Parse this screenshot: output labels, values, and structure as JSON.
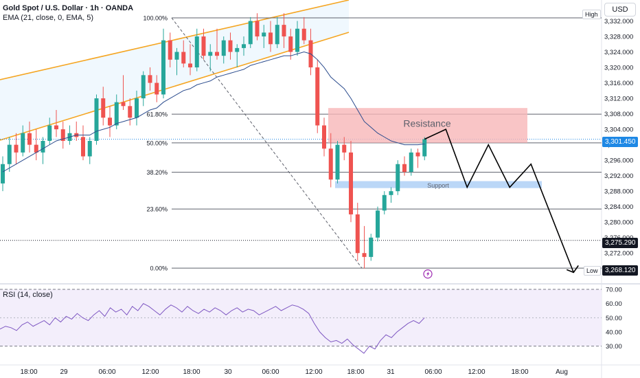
{
  "header": {
    "symbol_title": "Gold Spot / U.S. Dollar · 1h · OANDA",
    "indicator_label": "EMA (21, close, 0, EMA, 5)",
    "currency": "USD"
  },
  "rsi": {
    "label": "RSI (14, close)",
    "axis": [
      {
        "label": "70.00",
        "v": 70
      },
      {
        "label": "60.00",
        "v": 60
      },
      {
        "label": "50.00",
        "v": 50
      },
      {
        "label": "40.00",
        "v": 40
      },
      {
        "label": "30.00",
        "v": 30
      }
    ],
    "upper": 70,
    "lower": 30,
    "middle": 50,
    "values": [
      42,
      44,
      43,
      41,
      45,
      47,
      44,
      46,
      48,
      45,
      50,
      47,
      51,
      49,
      53,
      50,
      48,
      52,
      55,
      51,
      57,
      54,
      56,
      52,
      58,
      55,
      60,
      58,
      55,
      52,
      56,
      59,
      57,
      54,
      58,
      55,
      53,
      56,
      54,
      57,
      55,
      52,
      55,
      57,
      54,
      56,
      55,
      52,
      54,
      56,
      58,
      55,
      57,
      59,
      58,
      56,
      53,
      46,
      40,
      36,
      33,
      34,
      32,
      35,
      31,
      28,
      25,
      30,
      28,
      34,
      38,
      36,
      40,
      43,
      46,
      48,
      46,
      50
    ]
  },
  "price_axis": [
    "3,332.000",
    "3,328.000",
    "3,324.000",
    "3,320.000",
    "3,316.000",
    "3,312.000",
    "3,308.000",
    "3,304.000",
    "3,300.000",
    "3,296.000",
    "3,292.000",
    "3,288.000",
    "3,284.000",
    "3,280.000",
    "3,276.000",
    "3,272.000"
  ],
  "price_tags": {
    "current": "3,301.450",
    "line": "3,275.290",
    "low": "3,268.120"
  },
  "side_labels": {
    "high": "High",
    "low": "Low"
  },
  "fib_levels": [
    {
      "label": "100.00%"
    },
    {
      "label": "61.80%"
    },
    {
      "label": "50.00%"
    },
    {
      "label": "38.20%"
    },
    {
      "label": "23.60%"
    },
    {
      "label": "0.00%"
    }
  ],
  "zones": {
    "resistance": "Resistance",
    "support": "Support"
  },
  "time_axis": [
    "18:00",
    "29",
    "06:00",
    "12:00",
    "18:00",
    "30",
    "06:00",
    "12:00",
    "18:00",
    "31",
    "06:00",
    "12:00",
    "18:00",
    "Aug"
  ],
  "colors": {
    "up": "#26a69a",
    "down": "#ef5350",
    "ema": "#2a4b8d",
    "channel": "#f5a623",
    "resistance_fill": "#f8b6b8",
    "support_fill": "#bbd7f7",
    "rsi_line": "#7e57c2",
    "rsi_fill": "#f3eefb",
    "tag_current": "#1e88e5",
    "tag_dark": "#131722"
  },
  "chart_data": {
    "type": "candlestick",
    "candles": [
      [
        3290,
        3297,
        3288,
        3295
      ],
      [
        3295,
        3302,
        3293,
        3300
      ],
      [
        3300,
        3303,
        3295,
        3298
      ],
      [
        3298,
        3305,
        3297,
        3303
      ],
      [
        3303,
        3306,
        3298,
        3300
      ],
      [
        3300,
        3304,
        3296,
        3298
      ],
      [
        3298,
        3302,
        3295,
        3301
      ],
      [
        3301,
        3307,
        3300,
        3305
      ],
      [
        3305,
        3309,
        3302,
        3304
      ],
      [
        3304,
        3306,
        3299,
        3301
      ],
      [
        3301,
        3305,
        3300,
        3303
      ],
      [
        3303,
        3306,
        3301,
        3302
      ],
      [
        3302,
        3305,
        3296,
        3297
      ],
      [
        3297,
        3302,
        3295,
        3301
      ],
      [
        3301,
        3313,
        3300,
        3312
      ],
      [
        3312,
        3315,
        3305,
        3307
      ],
      [
        3307,
        3310,
        3302,
        3305
      ],
      [
        3305,
        3313,
        3304,
        3311
      ],
      [
        3311,
        3318,
        3309,
        3310
      ],
      [
        3310,
        3312,
        3305,
        3307
      ],
      [
        3307,
        3314,
        3305,
        3312
      ],
      [
        3312,
        3319,
        3310,
        3318
      ],
      [
        3318,
        3320,
        3314,
        3316
      ],
      [
        3316,
        3318,
        3311,
        3313
      ],
      [
        3313,
        3330,
        3312,
        3327
      ],
      [
        3327,
        3329,
        3320,
        3322
      ],
      [
        3322,
        3325,
        3318,
        3324
      ],
      [
        3324,
        3327,
        3320,
        3321
      ],
      [
        3321,
        3326,
        3318,
        3320
      ],
      [
        3320,
        3330,
        3319,
        3328
      ],
      [
        3328,
        3330,
        3322,
        3323
      ],
      [
        3323,
        3326,
        3319,
        3324
      ],
      [
        3324,
        3330,
        3322,
        3323
      ],
      [
        3323,
        3328,
        3321,
        3327
      ],
      [
        3327,
        3329,
        3322,
        3324
      ],
      [
        3324,
        3326,
        3320,
        3325
      ],
      [
        3325,
        3328,
        3323,
        3326
      ],
      [
        3326,
        3333,
        3325,
        3332
      ],
      [
        3332,
        3334,
        3327,
        3328
      ],
      [
        3328,
        3331,
        3325,
        3329
      ],
      [
        3329,
        3332,
        3324,
        3326
      ],
      [
        3326,
        3333,
        3325,
        3331
      ],
      [
        3331,
        3334,
        3325,
        3328
      ],
      [
        3328,
        3330,
        3322,
        3324
      ],
      [
        3324,
        3332,
        3323,
        3330
      ],
      [
        3330,
        3333,
        3326,
        3327
      ],
      [
        3327,
        3330,
        3318,
        3320
      ],
      [
        3320,
        3322,
        3303,
        3305
      ],
      [
        3305,
        3307,
        3297,
        3299
      ],
      [
        3299,
        3303,
        3289,
        3291
      ],
      [
        3291,
        3301,
        3290,
        3300
      ],
      [
        3300,
        3302,
        3296,
        3298
      ],
      [
        3298,
        3301,
        3280,
        3282
      ],
      [
        3282,
        3285,
        3270,
        3272
      ],
      [
        3272,
        3279,
        3268,
        3271
      ],
      [
        3271,
        3277,
        3270,
        3276
      ],
      [
        3276,
        3284,
        3275,
        3283
      ],
      [
        3283,
        3288,
        3282,
        3287
      ],
      [
        3287,
        3289,
        3285,
        3288
      ],
      [
        3288,
        3296,
        3287,
        3295
      ],
      [
        3295,
        3297,
        3292,
        3293
      ],
      [
        3293,
        3299,
        3292,
        3298
      ],
      [
        3298,
        3299,
        3294,
        3297
      ],
      [
        3297,
        3302,
        3296,
        3301.45
      ]
    ],
    "ema": [
      3293,
      3294,
      3295,
      3296,
      3297,
      3298,
      3299,
      3300,
      3301,
      3301.5,
      3302,
      3302.5,
      3302.5,
      3302.5,
      3303.5,
      3304,
      3304.5,
      3305.5,
      3306,
      3306.5,
      3307,
      3308,
      3309,
      3309.5,
      3311,
      3312,
      3313,
      3314,
      3314.5,
      3315.5,
      3316,
      3316.5,
      3317.5,
      3318,
      3318.5,
      3319,
      3319.5,
      3320.5,
      3321,
      3321.5,
      3322,
      3322.5,
      3323,
      3323,
      3323.5,
      3324,
      3323.5,
      3322,
      3320,
      3317.5,
      3316,
      3314.5,
      3312,
      3309,
      3306,
      3304.5,
      3303,
      3302,
      3301,
      3300.5,
      3300,
      3300,
      3300,
      3300.2
    ],
    "ylim": [
      3266,
      3336
    ],
    "fib_prices": [
      3332.8,
      3307.9,
      3300.5,
      3292.9,
      3283.4,
      3268.12
    ],
    "projection_path": [
      [
        3301.45,
        0
      ],
      [
        3304,
        1
      ],
      [
        3289,
        2
      ],
      [
        3300,
        3
      ],
      [
        3289,
        4
      ],
      [
        3295,
        5
      ],
      [
        3267,
        7
      ]
    ]
  }
}
